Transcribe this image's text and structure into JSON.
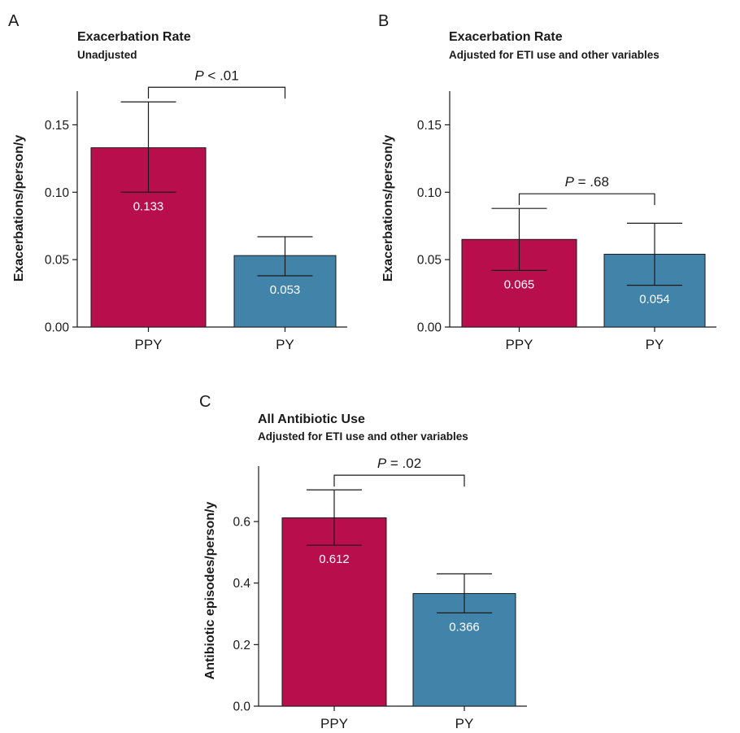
{
  "chart_data": [
    {
      "type": "bar",
      "panel": "A",
      "title": "Exacerbation Rate",
      "subtitle": "Unadjusted",
      "xlabel": "",
      "ylabel": "Exacerbations/person/y",
      "ylim": [
        0,
        0.175
      ],
      "yticks": [
        0.0,
        0.05,
        0.1,
        0.15
      ],
      "ytick_labels": [
        "0.00",
        "0.05",
        "0.10",
        "0.15"
      ],
      "categories": [
        "PPY",
        "PY"
      ],
      "values": [
        0.133,
        0.053
      ],
      "value_labels": [
        "0.133",
        "0.053"
      ],
      "error_low": [
        0.1,
        0.038
      ],
      "error_high": [
        0.167,
        0.067
      ],
      "colors": [
        "#b80f4c",
        "#4283aa"
      ],
      "significance": {
        "prefix": "P",
        "text": " < .01"
      }
    },
    {
      "type": "bar",
      "panel": "B",
      "title": "Exacerbation Rate",
      "subtitle": "Adjusted for ETI use and other variables",
      "xlabel": "",
      "ylabel": "Exacerbations/person/y",
      "ylim": [
        0,
        0.175
      ],
      "yticks": [
        0.0,
        0.05,
        0.1,
        0.15
      ],
      "ytick_labels": [
        "0.00",
        "0.05",
        "0.10",
        "0.15"
      ],
      "categories": [
        "PPY",
        "PY"
      ],
      "values": [
        0.065,
        0.054
      ],
      "value_labels": [
        "0.065",
        "0.054"
      ],
      "error_low": [
        0.042,
        0.031
      ],
      "error_high": [
        0.088,
        0.077
      ],
      "colors": [
        "#b80f4c",
        "#4283aa"
      ],
      "significance": {
        "prefix": "P",
        "text": " = .68"
      }
    },
    {
      "type": "bar",
      "panel": "C",
      "title": "All Antibiotic Use",
      "subtitle": "Adjusted for ETI use and other variables",
      "xlabel": "",
      "ylabel": "Antibiotic episodes/person/y",
      "ylim": [
        0,
        0.78
      ],
      "yticks": [
        0.0,
        0.2,
        0.4,
        0.6
      ],
      "ytick_labels": [
        "0.0",
        "0.2",
        "0.4",
        "0.6"
      ],
      "categories": [
        "PPY",
        "PY"
      ],
      "values": [
        0.612,
        0.366
      ],
      "value_labels": [
        "0.612",
        "0.366"
      ],
      "error_low": [
        0.523,
        0.303
      ],
      "error_high": [
        0.703,
        0.43
      ],
      "colors": [
        "#b80f4c",
        "#4283aa"
      ],
      "significance": {
        "prefix": "P",
        "text": " = .02"
      }
    }
  ]
}
